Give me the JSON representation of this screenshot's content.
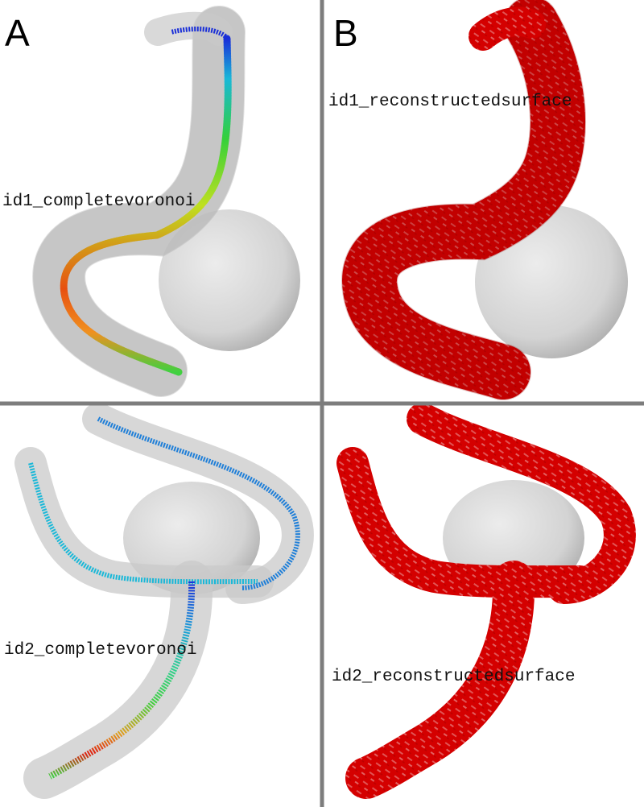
{
  "panels": {
    "a": {
      "letter": "A"
    },
    "b": {
      "letter": "B"
    }
  },
  "captions": {
    "id1_voronoi": "id1_completevoronoi",
    "id1_surface": "id1_reconstructedsurface",
    "id2_voronoi": "id2_completevoronoi",
    "id2_surface": "id2_reconstructedsurface"
  },
  "colors": {
    "background": "#ffffff",
    "divider": "#7d7d7d",
    "vessel_shell": "#c9c9c9",
    "aneurysm": "#d6d6d6",
    "reconstructed_surface": "#d40000",
    "voronoi_low": "#1a2fd8",
    "voronoi_mid": "#2fd03a",
    "voronoi_high": "#e02010"
  }
}
